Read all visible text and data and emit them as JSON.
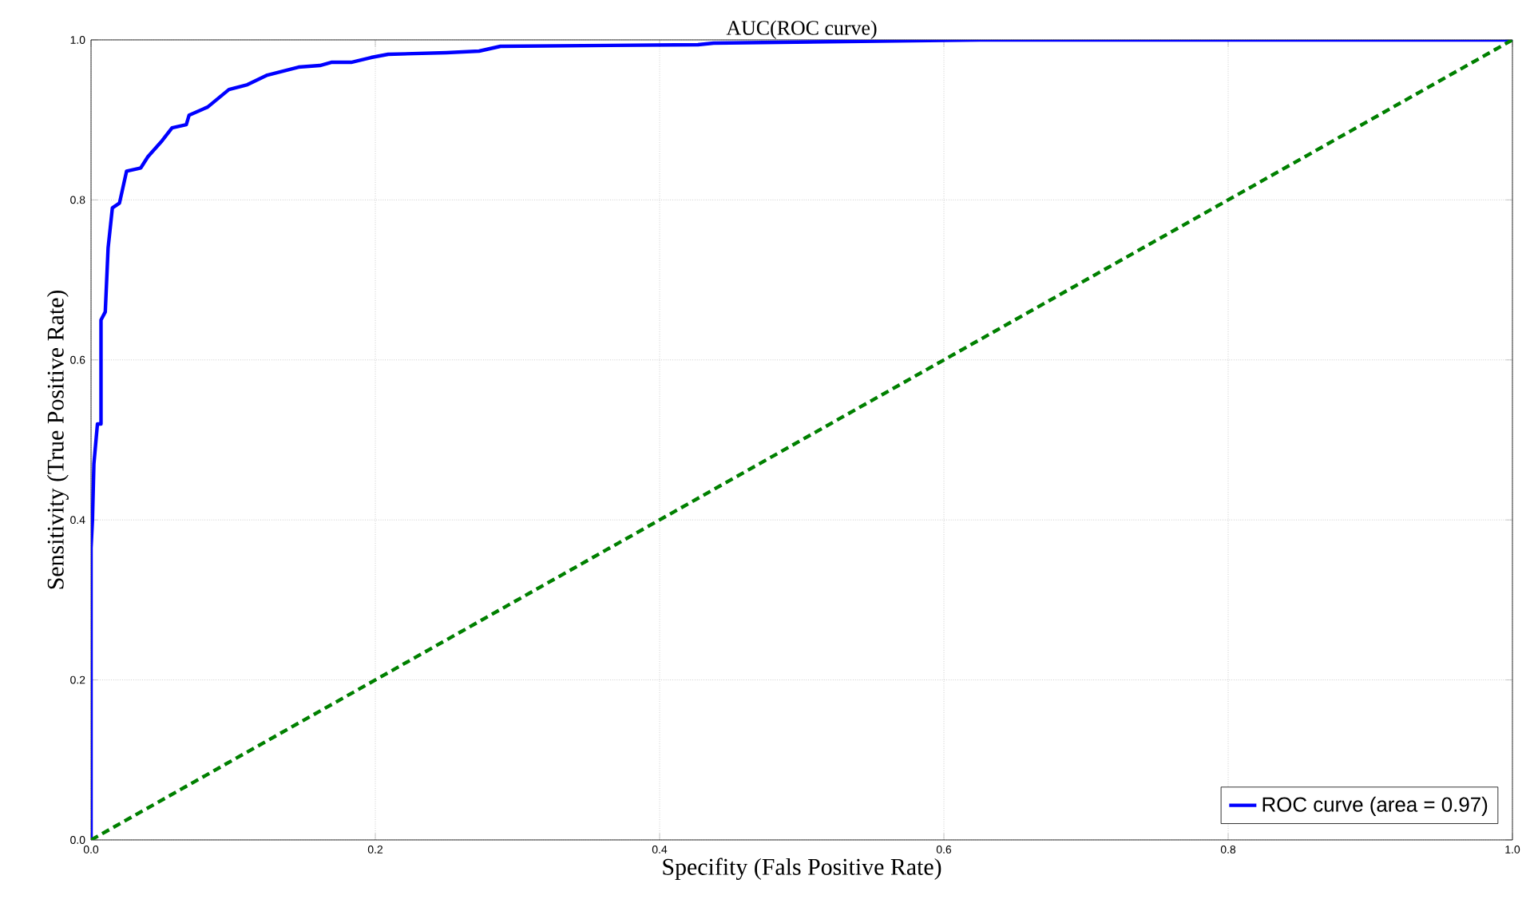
{
  "chart_data": {
    "type": "line",
    "title": "AUC(ROC curve)",
    "xlabel": "Specifity (Fals Positive Rate)",
    "ylabel": "Sensitivity (True Positive Rate)",
    "xlim": [
      0,
      1
    ],
    "ylim": [
      0,
      1
    ],
    "xticks": [
      {
        "value": 0,
        "label": "0.0"
      },
      {
        "value": 0.2,
        "label": "0.2"
      },
      {
        "value": 0.4,
        "label": "0.4"
      },
      {
        "value": 0.6,
        "label": "0.6"
      },
      {
        "value": 0.8,
        "label": "0.8"
      },
      {
        "value": 1,
        "label": "1.0"
      }
    ],
    "yticks": [
      {
        "value": 0,
        "label": "0.0"
      },
      {
        "value": 0.2,
        "label": "0.2"
      },
      {
        "value": 0.4,
        "label": "0.4"
      },
      {
        "value": 0.6,
        "label": "0.6"
      },
      {
        "value": 0.8,
        "label": "0.8"
      },
      {
        "value": 1,
        "label": "1.0"
      }
    ],
    "grid": true,
    "legend": "bottom right",
    "series": [
      {
        "name": "ROC curve (area = 0.97)",
        "color": "#0000ff",
        "line_style": "solid",
        "x": [
          0,
          0,
          0.001,
          0.002,
          0.0045,
          0.007,
          0.007,
          0.01,
          0.012,
          0.015,
          0.02,
          0.025,
          0.035,
          0.04,
          0.05,
          0.057,
          0.067,
          0.069,
          0.082,
          0.097,
          0.11,
          0.124,
          0.146,
          0.161,
          0.169,
          0.183,
          0.197,
          0.209,
          0.25,
          0.273,
          0.288,
          0.427,
          0.438,
          0.625,
          0.7,
          1
        ],
        "values": [
          0,
          0.365,
          0.4,
          0.47,
          0.52,
          0.52,
          0.65,
          0.66,
          0.74,
          0.79,
          0.796,
          0.836,
          0.84,
          0.854,
          0.874,
          0.89,
          0.894,
          0.906,
          0.916,
          0.938,
          0.944,
          0.956,
          0.966,
          0.968,
          0.972,
          0.972,
          0.978,
          0.982,
          0.984,
          0.986,
          0.992,
          0.994,
          0.996,
          1,
          1,
          1
        ]
      },
      {
        "color": "#008000",
        "line_style": "dashed",
        "x": [
          0,
          1
        ],
        "values": [
          0,
          1
        ]
      }
    ]
  }
}
